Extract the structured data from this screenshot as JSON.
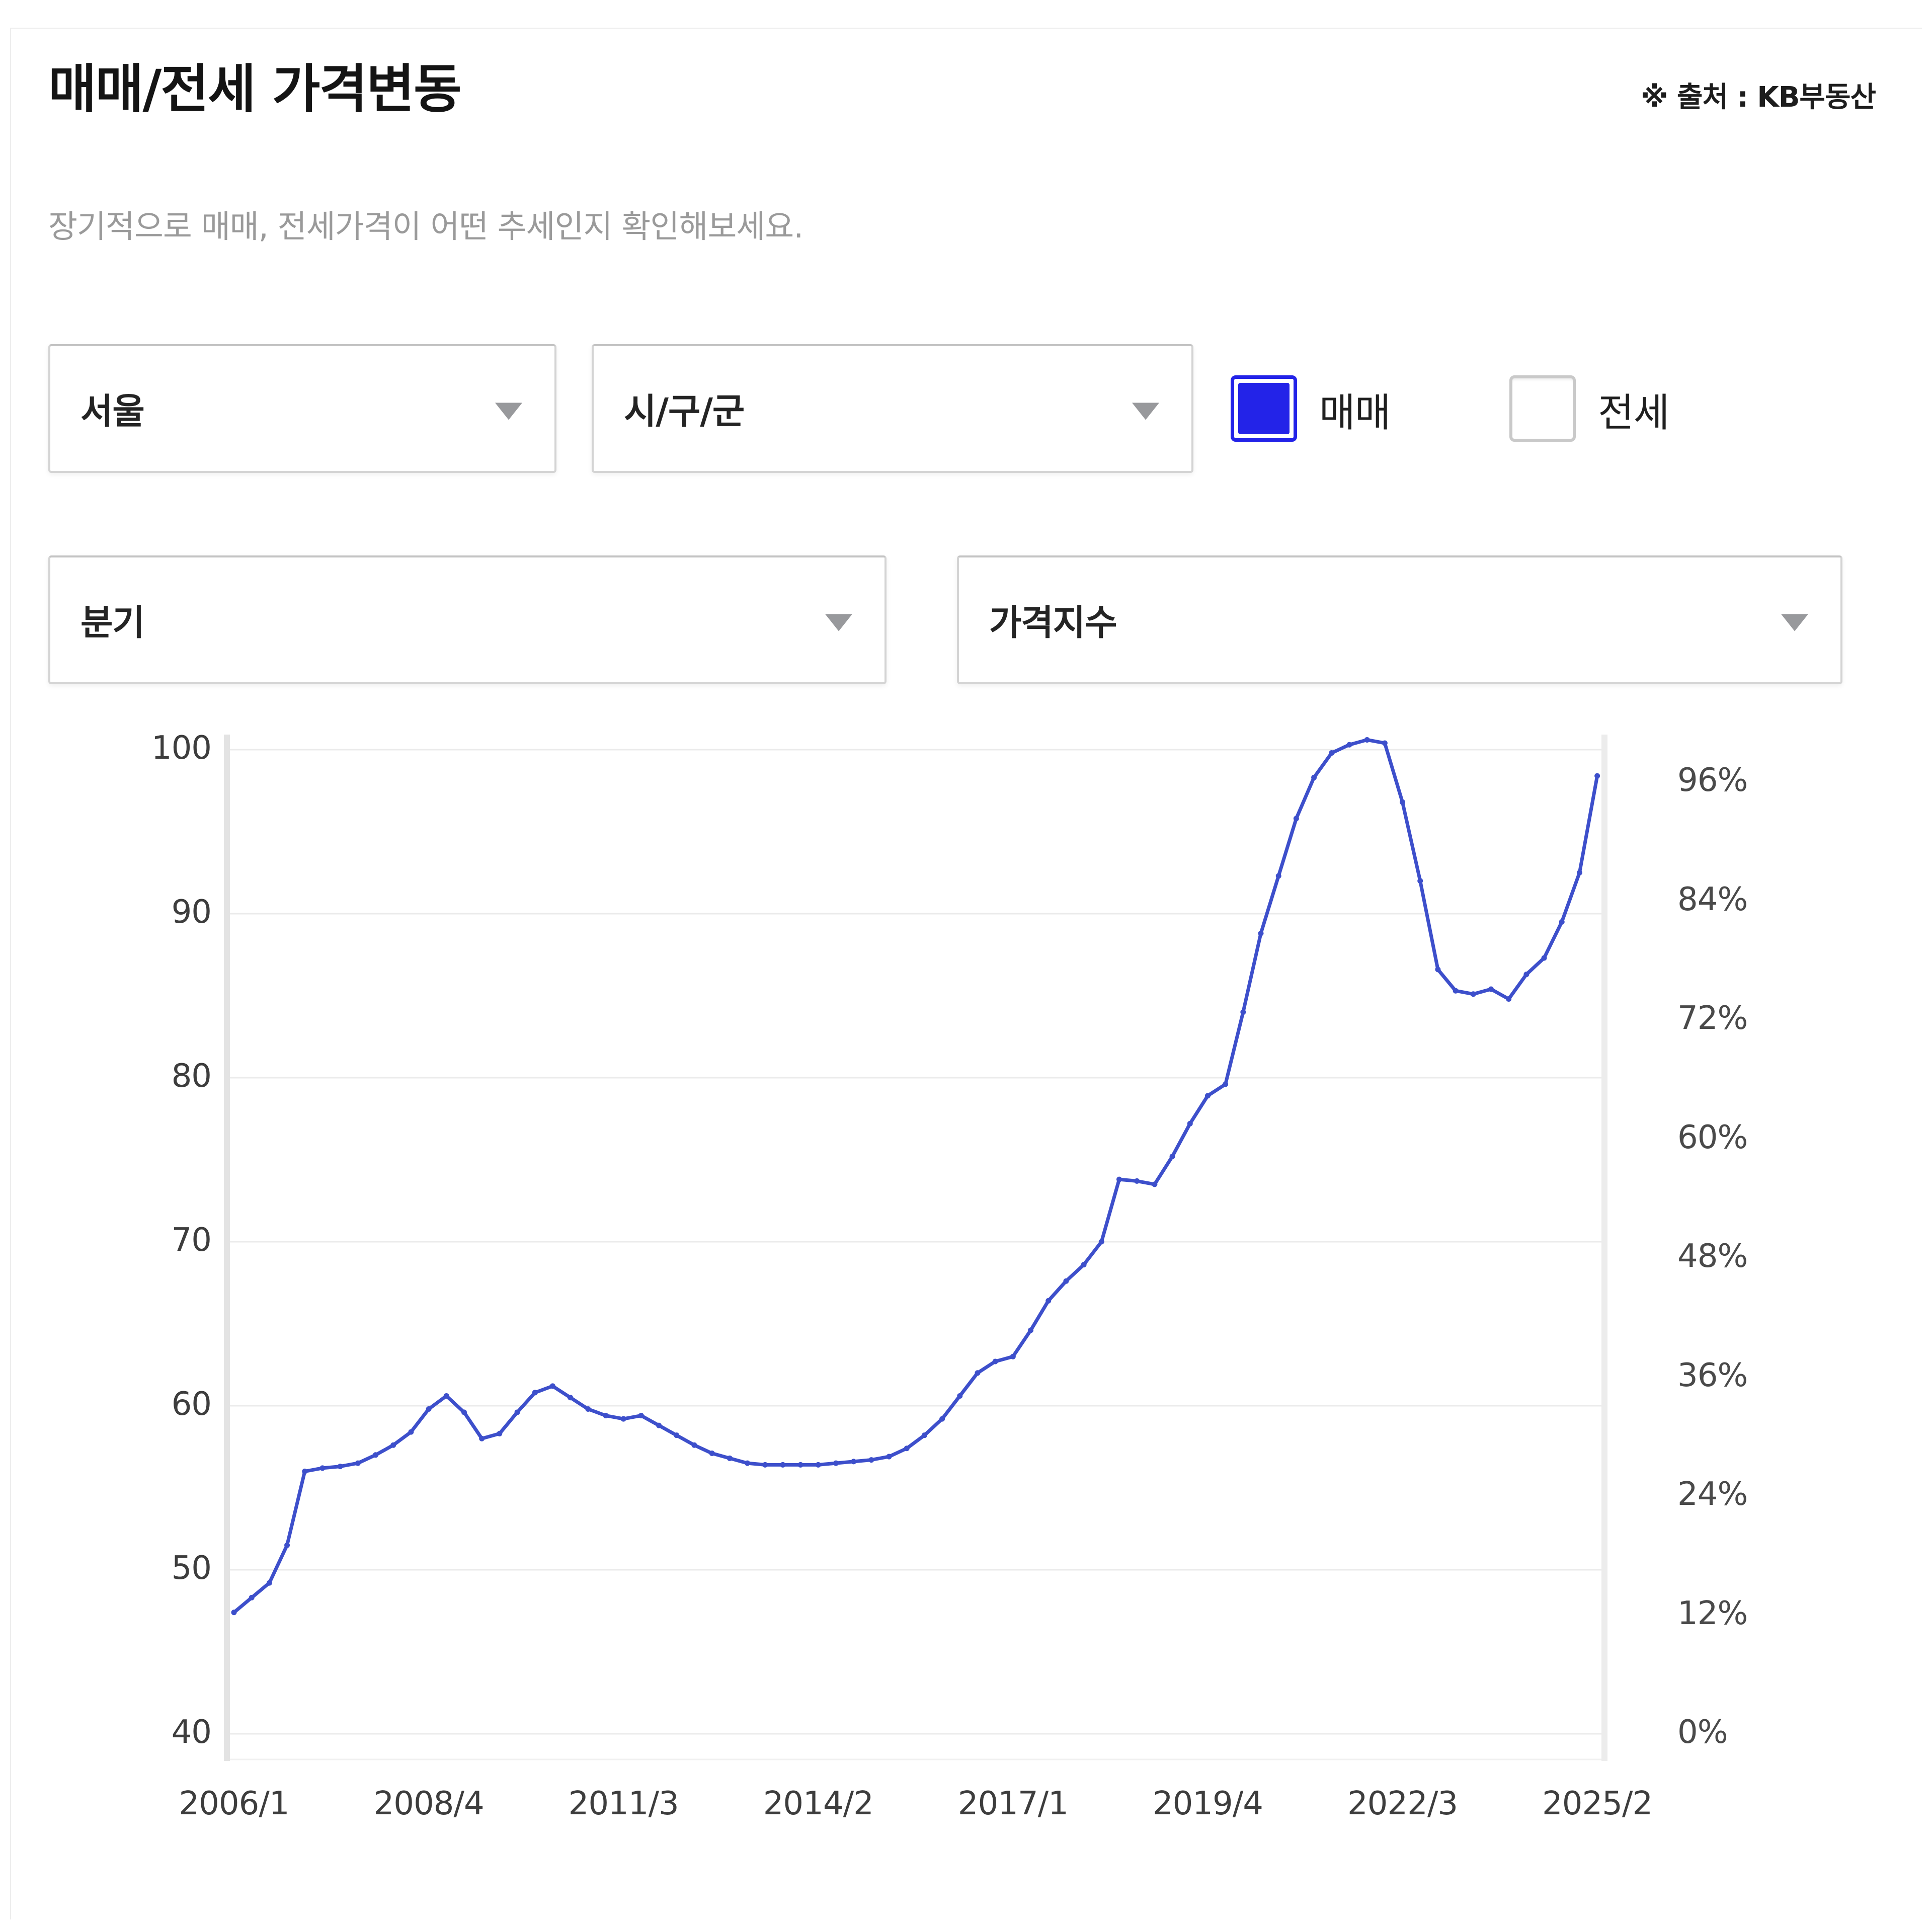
{
  "header": {
    "title": "매매/전세 가격변동",
    "source_note": "※ 출처 : KB부동산",
    "subtitle": "장기적으로 매매, 전세가격이 어떤 추세인지 확인해보세요."
  },
  "filters": {
    "region_select": {
      "value": "서울"
    },
    "district_select": {
      "value": "시/구/군"
    },
    "sale_checkbox": {
      "label": "매매",
      "checked": true
    },
    "jeonse_checkbox": {
      "label": "전세",
      "checked": false
    },
    "period_select": {
      "value": "분기"
    },
    "metric_select": {
      "value": "가격지수"
    }
  },
  "icons": {
    "dropdown_arrow": "triangle-down"
  },
  "colors": {
    "accent_blue": "#2323e8",
    "line_blue": "#3d4fcb",
    "grid_gray": "#ebebeb",
    "axis_bar_gray": "#e3e3e3",
    "subtitle_gray": "#9a9a9a"
  },
  "chart_data": {
    "type": "line",
    "title": "",
    "xlabel": "",
    "ylabel_left": "",
    "ylabel_right": "",
    "grid": "horizontal",
    "legend_position": "none",
    "left_axis": {
      "range": [
        40,
        100
      ],
      "ticks": [
        100,
        90,
        80,
        70,
        60,
        50,
        40
      ]
    },
    "right_axis": {
      "ticks": [
        "96%",
        "84%",
        "72%",
        "60%",
        "48%",
        "36%",
        "24%",
        "12%",
        "0%"
      ]
    },
    "x_tick_labels": [
      "2006/1",
      "2008/4",
      "2011/3",
      "2014/2",
      "2017/1",
      "2019/4",
      "2022/3",
      "2025/2"
    ],
    "x_tick_indices": [
      0,
      11,
      22,
      33,
      44,
      55,
      66,
      77
    ],
    "x": [
      "2006/1",
      "2006/2",
      "2006/3",
      "2006/4",
      "2007/1",
      "2007/2",
      "2007/3",
      "2007/4",
      "2008/1",
      "2008/2",
      "2008/3",
      "2008/4",
      "2009/1",
      "2009/2",
      "2009/3",
      "2009/4",
      "2010/1",
      "2010/2",
      "2010/3",
      "2010/4",
      "2011/1",
      "2011/2",
      "2011/3",
      "2011/4",
      "2012/1",
      "2012/2",
      "2012/3",
      "2012/4",
      "2013/1",
      "2013/2",
      "2013/3",
      "2013/4",
      "2014/1",
      "2014/2",
      "2014/3",
      "2014/4",
      "2015/1",
      "2015/2",
      "2015/3",
      "2015/4",
      "2016/1",
      "2016/2",
      "2016/3",
      "2016/4",
      "2017/1",
      "2017/2",
      "2017/3",
      "2017/4",
      "2018/1",
      "2018/2",
      "2018/3",
      "2018/4",
      "2019/1",
      "2019/2",
      "2019/3",
      "2019/4",
      "2020/1",
      "2020/2",
      "2020/3",
      "2020/4",
      "2021/1",
      "2021/2",
      "2021/3",
      "2021/4",
      "2022/1",
      "2022/2",
      "2022/3",
      "2022/4",
      "2023/1",
      "2023/2",
      "2023/3",
      "2023/4",
      "2024/1",
      "2024/2",
      "2024/3",
      "2024/4",
      "2025/1",
      "2025/2"
    ],
    "series": [
      {
        "name": "매매 가격지수",
        "color": "#3d4fcb",
        "values": [
          47.4,
          48.3,
          49.2,
          51.5,
          56.0,
          56.2,
          56.3,
          56.5,
          57.0,
          57.6,
          58.4,
          59.8,
          60.6,
          59.6,
          58.0,
          58.3,
          59.6,
          60.8,
          61.2,
          60.5,
          59.8,
          59.4,
          59.2,
          59.4,
          58.8,
          58.2,
          57.6,
          57.1,
          56.8,
          56.5,
          56.4,
          56.4,
          56.4,
          56.4,
          56.5,
          56.6,
          56.7,
          56.9,
          57.4,
          58.2,
          59.2,
          60.6,
          62.0,
          62.7,
          63.0,
          64.6,
          66.4,
          67.6,
          68.6,
          70.0,
          73.8,
          73.7,
          73.5,
          75.2,
          77.2,
          78.9,
          79.6,
          84.0,
          88.8,
          92.3,
          95.8,
          98.3,
          99.8,
          100.3,
          100.6,
          100.4,
          96.8,
          92.0,
          86.6,
          85.3,
          85.1,
          85.4,
          84.8,
          86.3,
          87.3,
          89.5,
          92.5,
          98.4
        ]
      }
    ]
  }
}
